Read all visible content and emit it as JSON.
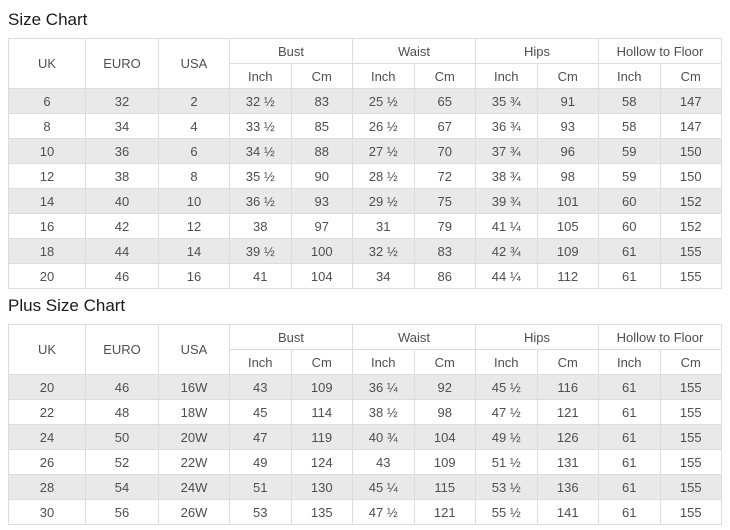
{
  "page": {
    "colors": {
      "row_stripe": "#e9e9e9",
      "table_border": "#dddddd",
      "cell_text": "#4f4f4f",
      "title_text": "#1a1a1a"
    }
  },
  "size_chart": {
    "title": "Size Chart",
    "headers": {
      "uk": "UK",
      "euro": "EURO",
      "usa": "USA",
      "bust": "Bust",
      "waist": "Waist",
      "hips": "Hips",
      "hollow_to_floor": "Hollow to Floor",
      "inch": "Inch",
      "cm": "Cm"
    },
    "rows": [
      [
        "6",
        "32",
        "2",
        "32 ½",
        "83",
        "25 ½",
        "65",
        "35 ¾",
        "91",
        "58",
        "147"
      ],
      [
        "8",
        "34",
        "4",
        "33 ½",
        "85",
        "26 ½",
        "67",
        "36 ¾",
        "93",
        "58",
        "147"
      ],
      [
        "10",
        "36",
        "6",
        "34 ½",
        "88",
        "27 ½",
        "70",
        "37 ¾",
        "96",
        "59",
        "150"
      ],
      [
        "12",
        "38",
        "8",
        "35 ½",
        "90",
        "28 ½",
        "72",
        "38 ¾",
        "98",
        "59",
        "150"
      ],
      [
        "14",
        "40",
        "10",
        "36 ½",
        "93",
        "29 ½",
        "75",
        "39 ¾",
        "101",
        "60",
        "152"
      ],
      [
        "16",
        "42",
        "12",
        "38",
        "97",
        "31",
        "79",
        "41 ¼",
        "105",
        "60",
        "152"
      ],
      [
        "18",
        "44",
        "14",
        "39 ½",
        "100",
        "32 ½",
        "83",
        "42 ¾",
        "109",
        "61",
        "155"
      ],
      [
        "20",
        "46",
        "16",
        "41",
        "104",
        "34",
        "86",
        "44 ¼",
        "112",
        "61",
        "155"
      ]
    ]
  },
  "plus_size_chart": {
    "title": "Plus Size Chart",
    "headers": {
      "uk": "UK",
      "euro": "EURO",
      "usa": "USA",
      "bust": "Bust",
      "waist": "Waist",
      "hips": "Hips",
      "hollow_to_floor": "Hollow to Floor",
      "inch": "Inch",
      "cm": "Cm"
    },
    "rows": [
      [
        "20",
        "46",
        "16W",
        "43",
        "109",
        "36 ¼",
        "92",
        "45 ½",
        "116",
        "61",
        "155"
      ],
      [
        "22",
        "48",
        "18W",
        "45",
        "114",
        "38 ½",
        "98",
        "47 ½",
        "121",
        "61",
        "155"
      ],
      [
        "24",
        "50",
        "20W",
        "47",
        "119",
        "40 ¾",
        "104",
        "49 ½",
        "126",
        "61",
        "155"
      ],
      [
        "26",
        "52",
        "22W",
        "49",
        "124",
        "43",
        "109",
        "51 ½",
        "131",
        "61",
        "155"
      ],
      [
        "28",
        "54",
        "24W",
        "51",
        "130",
        "45 ¼",
        "115",
        "53 ½",
        "136",
        "61",
        "155"
      ],
      [
        "30",
        "56",
        "26W",
        "53",
        "135",
        "47 ½",
        "121",
        "55 ½",
        "141",
        "61",
        "155"
      ]
    ]
  }
}
